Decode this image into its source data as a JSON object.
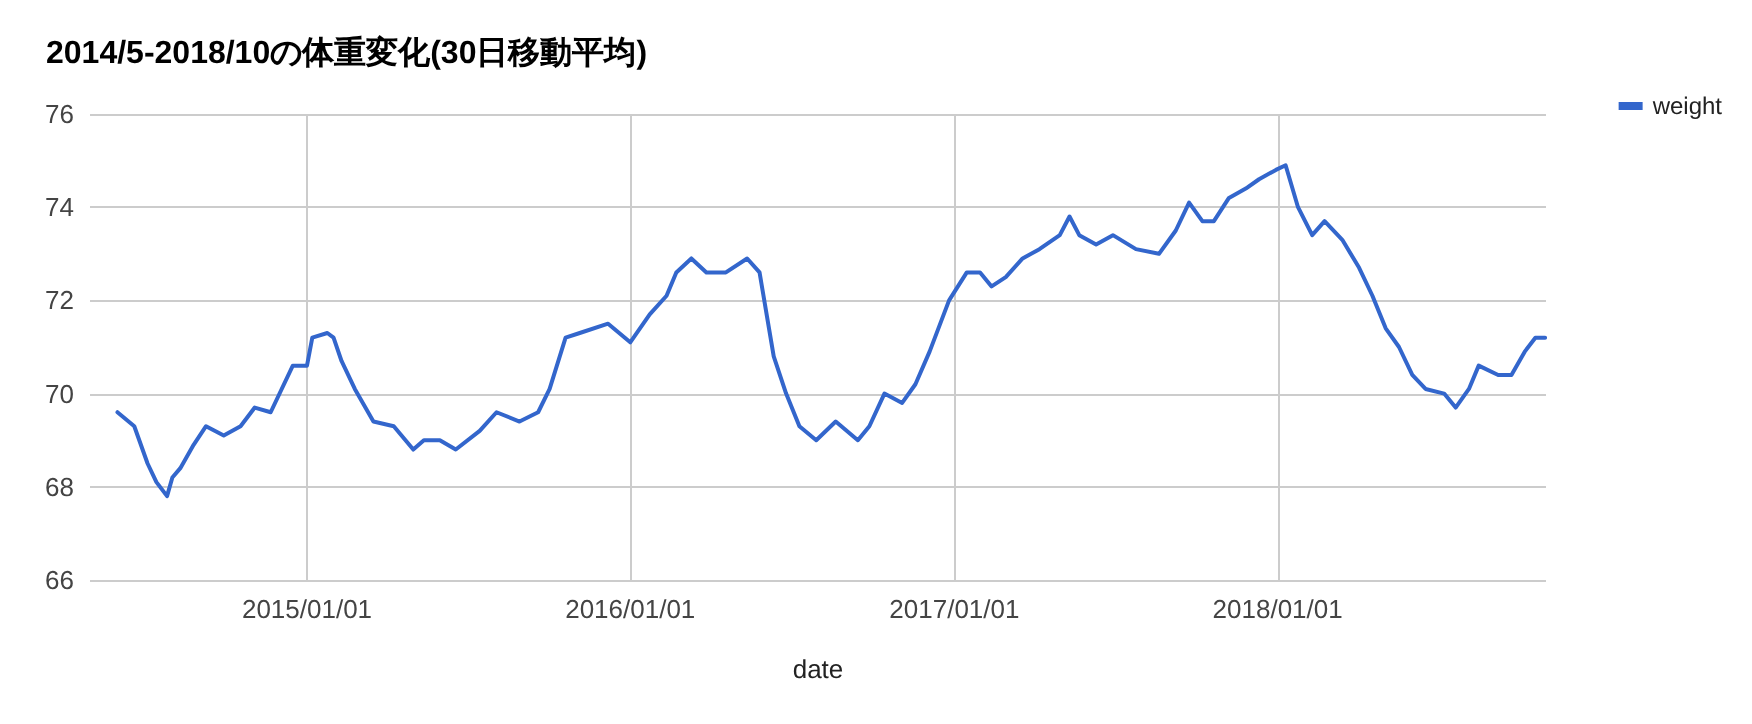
{
  "chart_data": {
    "type": "line",
    "title": "2014/5-2018/10の体重変化(30日移動平均)",
    "xlabel": "date",
    "xlim": [
      "2014-05-01",
      "2018-10-31"
    ],
    "xticks": [
      {
        "value": "2015-01-01",
        "label": "2015/01/01"
      },
      {
        "value": "2016-01-01",
        "label": "2016/01/01"
      },
      {
        "value": "2017-01-01",
        "label": "2017/01/01"
      },
      {
        "value": "2018-01-01",
        "label": "2018/01/01"
      }
    ],
    "ylim": [
      66,
      76
    ],
    "yticks": [
      66,
      68,
      70,
      72,
      74,
      76
    ],
    "grid": true,
    "legend": "top right",
    "marker": "none",
    "line_style": "solid",
    "x": [
      "2014-06-01",
      "2014-06-20",
      "2014-07-05",
      "2014-07-15",
      "2014-07-27",
      "2014-08-02",
      "2014-08-11",
      "2014-08-26",
      "2014-09-09",
      "2014-09-29",
      "2014-10-18",
      "2014-11-03",
      "2014-11-21",
      "2014-12-16",
      "2015-01-01",
      "2015-01-07",
      "2015-01-24",
      "2015-01-31",
      "2015-02-09",
      "2015-02-24",
      "2015-03-17",
      "2015-04-09",
      "2015-05-01",
      "2015-05-13",
      "2015-05-31",
      "2015-06-18",
      "2015-07-15",
      "2015-08-03",
      "2015-08-29",
      "2015-09-19",
      "2015-10-02",
      "2015-10-20",
      "2015-11-05",
      "2015-12-07",
      "2016-01-01",
      "2016-01-23",
      "2016-02-11",
      "2016-02-22",
      "2016-03-10",
      "2016-03-27",
      "2016-04-18",
      "2016-05-12",
      "2016-05-26",
      "2016-06-11",
      "2016-06-25",
      "2016-07-10",
      "2016-07-29",
      "2016-08-20",
      "2016-09-14",
      "2016-09-27",
      "2016-10-14",
      "2016-11-03",
      "2016-11-18",
      "2016-12-04",
      "2016-12-26",
      "2017-01-15",
      "2017-01-30",
      "2017-02-12",
      "2017-02-28",
      "2017-03-19",
      "2017-04-07",
      "2017-04-30",
      "2017-05-11",
      "2017-05-22",
      "2017-06-10",
      "2017-06-29",
      "2017-07-25",
      "2017-08-20",
      "2017-09-08",
      "2017-09-23",
      "2017-10-08",
      "2017-10-21",
      "2017-11-07",
      "2017-11-26",
      "2017-12-11",
      "2017-12-30",
      "2018-01-10",
      "2018-01-24",
      "2018-02-09",
      "2018-02-23",
      "2018-03-15",
      "2018-04-03",
      "2018-04-18",
      "2018-05-03",
      "2018-05-18",
      "2018-06-02",
      "2018-06-17",
      "2018-07-08",
      "2018-07-21",
      "2018-08-05",
      "2018-08-16",
      "2018-09-07",
      "2018-09-22",
      "2018-10-07",
      "2018-10-19",
      "2018-10-30"
    ],
    "series": [
      {
        "name": "weight",
        "color": "#3366cc",
        "values": [
          69.6,
          69.3,
          68.5,
          68.1,
          67.8,
          68.2,
          68.4,
          68.9,
          69.3,
          69.1,
          69.3,
          69.7,
          69.6,
          70.6,
          70.6,
          71.2,
          71.3,
          71.2,
          70.7,
          70.1,
          69.4,
          69.3,
          68.8,
          69.0,
          69.0,
          68.8,
          69.2,
          69.6,
          69.4,
          69.6,
          70.1,
          71.2,
          71.3,
          71.5,
          71.1,
          71.7,
          72.1,
          72.6,
          72.9,
          72.6,
          72.6,
          72.9,
          72.6,
          70.8,
          70.0,
          69.3,
          69.0,
          69.4,
          69.0,
          69.3,
          70.0,
          69.8,
          70.2,
          70.9,
          72.0,
          72.6,
          72.6,
          72.3,
          72.5,
          72.9,
          73.1,
          73.4,
          73.8,
          73.4,
          73.2,
          73.4,
          73.1,
          73.0,
          73.5,
          74.1,
          73.7,
          73.7,
          74.2,
          74.4,
          74.6,
          74.8,
          74.9,
          74.0,
          73.4,
          73.7,
          73.3,
          72.7,
          72.1,
          71.4,
          71.0,
          70.4,
          70.1,
          70.0,
          69.7,
          70.1,
          70.6,
          70.4,
          70.4,
          70.9,
          71.2,
          71.2
        ]
      }
    ]
  }
}
